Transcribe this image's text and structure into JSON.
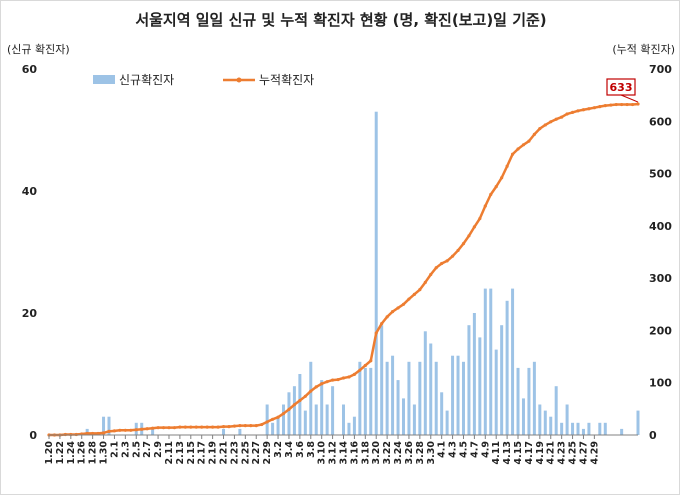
{
  "chart_data": {
    "type": "bar+line",
    "title": "서울지역 일일 신규 및 누적 확진자 현황 (명, 확진(보고)일 기준)",
    "y_left_label": "(신규 확진자)",
    "y_right_label": "(누적 확진자)",
    "y_left_lim": [
      0,
      60
    ],
    "y_left_ticks": [
      "0",
      "20",
      "40",
      "60"
    ],
    "y_right_lim": [
      0,
      700
    ],
    "y_right_ticks": [
      "0",
      "100",
      "200",
      "300",
      "400",
      "500",
      "600",
      "700"
    ],
    "x_tick_labels": [
      "1.20",
      "1.22",
      "1.24",
      "1.26",
      "1.28",
      "1.30",
      "2.1",
      "2.3",
      "2.5",
      "2.7",
      "2.9",
      "2.11",
      "2.13",
      "2.15",
      "2.17",
      "2.19",
      "2.21",
      "2.23",
      "2.25",
      "2.27",
      "2.29",
      "3.2",
      "3.4",
      "3.6",
      "3.8",
      "3.10",
      "3.12",
      "3.14",
      "3.16",
      "3.18",
      "3.20",
      "3.22",
      "3.24",
      "3.26",
      "3.28",
      "3.30",
      "4.1",
      "4.3",
      "4.5",
      "4.7",
      "4.9",
      "4.11",
      "4.13",
      "4.15",
      "4.17",
      "4.19",
      "4.21",
      "4.23",
      "4.25",
      "4.27",
      "4.29"
    ],
    "legend_position": "top-left",
    "grid": false,
    "series": [
      {
        "name": "신규확진자",
        "type": "bar",
        "axis": "left",
        "color": "#9dc3e6",
        "values": [
          0,
          0,
          0,
          0,
          0,
          0,
          0,
          1,
          0,
          0,
          3,
          3,
          0,
          0,
          0,
          0,
          2,
          2,
          0,
          1,
          0,
          0,
          0,
          0,
          0,
          0,
          0,
          0,
          0,
          0,
          0,
          0,
          1,
          0,
          0,
          1,
          0,
          0,
          0,
          0,
          5,
          2,
          3,
          5,
          7,
          8,
          10,
          4,
          12,
          5,
          9,
          5,
          8,
          0,
          5,
          2,
          3,
          12,
          11,
          11,
          53,
          18,
          12,
          13,
          9,
          6,
          12,
          5,
          12,
          17,
          15,
          12,
          7,
          4,
          13,
          13,
          12,
          18,
          20,
          16,
          24,
          24,
          14,
          18,
          22,
          24,
          11,
          6,
          11,
          12,
          5,
          4,
          3,
          8,
          2,
          5,
          2,
          2,
          1,
          2,
          0,
          2,
          2,
          0,
          0,
          1,
          0,
          0,
          4
        ]
      },
      {
        "name": "누적확진자",
        "type": "line",
        "axis": "right",
        "color": "#ed7d31",
        "values": [
          0,
          0,
          0,
          1,
          1,
          1,
          2,
          3,
          3,
          3,
          4,
          7,
          8,
          9,
          9,
          9,
          10,
          11,
          12,
          13,
          14,
          14,
          14,
          14,
          15,
          15,
          15,
          15,
          15,
          15,
          15,
          15,
          16,
          16,
          17,
          18,
          18,
          18,
          18,
          20,
          25,
          30,
          34,
          41,
          49,
          58,
          66,
          74,
          84,
          92,
          98,
          102,
          105,
          106,
          109,
          111,
          116,
          124,
          133,
          142,
          195,
          213,
          226,
          236,
          243,
          250,
          260,
          269,
          278,
          292,
          307,
          320,
          328,
          333,
          342,
          353,
          366,
          381,
          398,
          414,
          438,
          460,
          475,
          492,
          514,
          537,
          547,
          555,
          562,
          575,
          586,
          593,
          599,
          604,
          608,
          614,
          617,
          620,
          622,
          624,
          626,
          628,
          630,
          631,
          632,
          632,
          632,
          632,
          633
        ]
      }
    ],
    "annotation": "633"
  }
}
